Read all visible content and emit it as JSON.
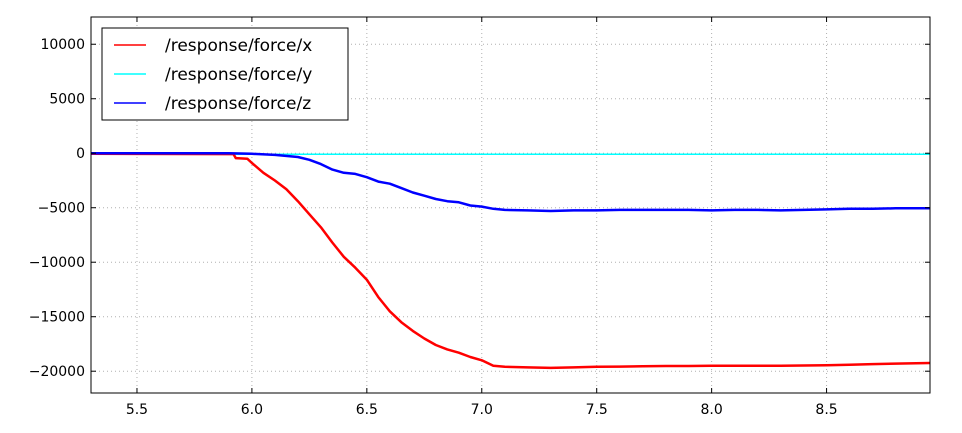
{
  "chart_data": {
    "type": "line",
    "title": "",
    "xlabel": "",
    "ylabel": "",
    "xlim": [
      5.3,
      8.95
    ],
    "ylim": [
      -22000,
      12500
    ],
    "xticks": [
      5.5,
      6.0,
      6.5,
      7.0,
      7.5,
      8.0,
      8.5
    ],
    "xtick_labels": [
      "5.5",
      "6.0",
      "6.5",
      "7.0",
      "7.5",
      "8.0",
      "8.5"
    ],
    "yticks": [
      10000,
      5000,
      0,
      -5000,
      -10000,
      -15000,
      -20000
    ],
    "ytick_labels": [
      "10000",
      "5000",
      "0",
      "−5000",
      "−10000",
      "−15000",
      "−20000"
    ],
    "grid": true,
    "legend_position": "top-left",
    "series": [
      {
        "name": "/response/force/x",
        "color": "#ff0000",
        "x": [
          5.3,
          5.92,
          5.93,
          5.98,
          6.0,
          6.05,
          6.1,
          6.15,
          6.2,
          6.25,
          6.3,
          6.35,
          6.4,
          6.45,
          6.5,
          6.55,
          6.6,
          6.65,
          6.7,
          6.75,
          6.8,
          6.85,
          6.9,
          6.95,
          7.0,
          7.05,
          7.1,
          7.2,
          7.3,
          7.4,
          7.5,
          7.6,
          7.7,
          7.8,
          7.9,
          8.0,
          8.1,
          8.2,
          8.3,
          8.4,
          8.5,
          8.6,
          8.7,
          8.8,
          8.95
        ],
        "y": [
          -50,
          -80,
          -450,
          -500,
          -900,
          -1800,
          -2500,
          -3300,
          -4400,
          -5600,
          -6800,
          -8200,
          -9500,
          -10500,
          -11600,
          -13200,
          -14500,
          -15500,
          -16300,
          -17000,
          -17600,
          -18000,
          -18300,
          -18700,
          -19000,
          -19500,
          -19600,
          -19650,
          -19700,
          -19650,
          -19600,
          -19580,
          -19550,
          -19520,
          -19520,
          -19500,
          -19500,
          -19500,
          -19500,
          -19480,
          -19450,
          -19400,
          -19350,
          -19300,
          -19250
        ]
      },
      {
        "name": "/response/force/y",
        "color": "#00ffff",
        "x": [
          5.3,
          6.0,
          6.5,
          7.0,
          7.5,
          8.0,
          8.5,
          8.95
        ],
        "y": [
          -100,
          -100,
          -100,
          -100,
          -100,
          -100,
          -100,
          -100
        ]
      },
      {
        "name": "/response/force/z",
        "color": "#0000ff",
        "x": [
          5.3,
          5.9,
          6.0,
          6.1,
          6.2,
          6.25,
          6.3,
          6.35,
          6.4,
          6.45,
          6.5,
          6.55,
          6.6,
          6.65,
          6.7,
          6.75,
          6.8,
          6.85,
          6.9,
          6.95,
          7.0,
          7.05,
          7.1,
          7.2,
          7.3,
          7.4,
          7.5,
          7.6,
          7.7,
          7.8,
          7.9,
          8.0,
          8.1,
          8.2,
          8.3,
          8.4,
          8.5,
          8.6,
          8.7,
          8.8,
          8.95
        ],
        "y": [
          0,
          0,
          -50,
          -150,
          -350,
          -600,
          -1000,
          -1500,
          -1800,
          -1900,
          -2200,
          -2600,
          -2800,
          -3200,
          -3600,
          -3900,
          -4200,
          -4400,
          -4500,
          -4800,
          -4900,
          -5100,
          -5200,
          -5250,
          -5300,
          -5250,
          -5250,
          -5200,
          -5200,
          -5200,
          -5200,
          -5250,
          -5200,
          -5200,
          -5250,
          -5200,
          -5150,
          -5100,
          -5100,
          -5050,
          -5050
        ]
      }
    ]
  }
}
